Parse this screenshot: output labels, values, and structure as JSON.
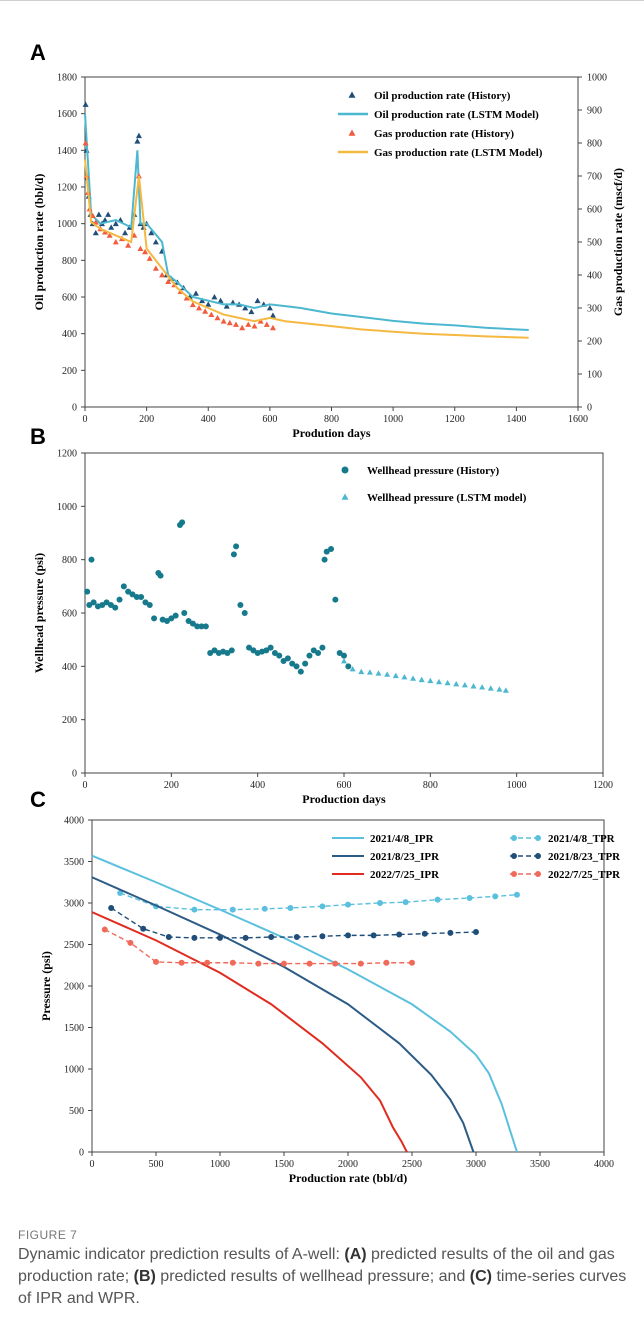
{
  "chart_data": [
    {
      "panel": "A",
      "type": "scatter+line",
      "xlabel": "Prodution days",
      "ylabel": "Oil production rate (bbl/d)",
      "y2label": "Gas production rate (mscf/d)",
      "xlim": [
        0,
        1600
      ],
      "ylim": [
        0,
        1800
      ],
      "y2lim": [
        0,
        1000
      ],
      "xticks": [
        "0",
        "200",
        "400",
        "600",
        "800",
        "1000",
        "1200",
        "1400",
        "1600"
      ],
      "yticks": [
        "0",
        "200",
        "400",
        "600",
        "800",
        "1000",
        "1200",
        "1400",
        "1600",
        "1800"
      ],
      "y2ticks": [
        "0",
        "100",
        "200",
        "300",
        "400",
        "500",
        "600",
        "700",
        "800",
        "900",
        "1000"
      ],
      "legend": "top-right",
      "series": [
        {
          "name": "Oil production rate (History)",
          "kind": "markers",
          "marker": "triangle",
          "color": "#1f4e79",
          "x": [
            2,
            5,
            8,
            12,
            18,
            25,
            35,
            45,
            55,
            65,
            75,
            85,
            100,
            115,
            130,
            145,
            160,
            170,
            175,
            180,
            190,
            200,
            215,
            230,
            250,
            265,
            280,
            300,
            320,
            340,
            360,
            380,
            400,
            420,
            440,
            460,
            480,
            500,
            520,
            540,
            560,
            580,
            600,
            610
          ],
          "y": [
            1650,
            1400,
            1250,
            1150,
            1050,
            1000,
            950,
            1050,
            1000,
            1020,
            1050,
            980,
            1000,
            1020,
            950,
            980,
            1050,
            1450,
            1480,
            1000,
            980,
            1000,
            950,
            900,
            850,
            720,
            700,
            680,
            650,
            600,
            620,
            580,
            560,
            600,
            580,
            550,
            570,
            560,
            540,
            520,
            580,
            560,
            540,
            500
          ]
        },
        {
          "name": "Oil production rate (LSTM Model)",
          "kind": "line",
          "color": "#4bb8d0",
          "x": [
            0,
            20,
            50,
            100,
            150,
            170,
            180,
            200,
            250,
            270,
            300,
            350,
            400,
            450,
            500,
            550,
            600,
            650,
            700,
            800,
            900,
            1000,
            1100,
            1200,
            1300,
            1440
          ],
          "y": [
            1600,
            1050,
            1000,
            1020,
            980,
            1400,
            1000,
            1000,
            900,
            720,
            680,
            600,
            580,
            560,
            560,
            540,
            560,
            550,
            540,
            510,
            490,
            470,
            455,
            445,
            432,
            420
          ]
        },
        {
          "name": "Gas production rate (History)",
          "kind": "markers",
          "marker": "triangle",
          "color": "#f25c3c",
          "x": [
            2,
            5,
            10,
            15,
            25,
            35,
            50,
            65,
            80,
            100,
            120,
            140,
            160,
            175,
            180,
            195,
            210,
            230,
            250,
            270,
            290,
            310,
            330,
            350,
            370,
            390,
            410,
            430,
            450,
            470,
            490,
            510,
            530,
            550,
            570,
            590,
            610
          ],
          "y": [
            800,
            700,
            650,
            600,
            580,
            560,
            540,
            530,
            520,
            500,
            510,
            490,
            520,
            700,
            480,
            470,
            450,
            420,
            400,
            380,
            370,
            350,
            330,
            310,
            300,
            290,
            280,
            270,
            260,
            255,
            250,
            240,
            250,
            245,
            260,
            250,
            240
          ]
        },
        {
          "name": "Gas production rate (LSTM Model)",
          "kind": "line",
          "color": "#f5b942",
          "x": [
            0,
            20,
            50,
            100,
            150,
            175,
            200,
            250,
            300,
            350,
            400,
            450,
            500,
            550,
            600,
            650,
            700,
            800,
            900,
            1000,
            1100,
            1200,
            1300,
            1440
          ],
          "y": [
            750,
            560,
            540,
            520,
            500,
            700,
            480,
            420,
            360,
            320,
            300,
            280,
            270,
            260,
            270,
            260,
            255,
            245,
            235,
            228,
            222,
            218,
            214,
            210
          ]
        }
      ]
    },
    {
      "panel": "B",
      "type": "scatter",
      "xlabel": "Production days",
      "ylabel": "Wellhead pressure (psi)",
      "xlim": [
        0,
        1200
      ],
      "ylim": [
        0,
        1200
      ],
      "xticks": [
        "0",
        "200",
        "400",
        "600",
        "800",
        "1000",
        "1200"
      ],
      "yticks": [
        "0",
        "200",
        "400",
        "600",
        "800",
        "1000",
        "1200"
      ],
      "legend": "top-right",
      "series": [
        {
          "name": "Wellhead pressure (History)",
          "kind": "markers",
          "marker": "circle",
          "color": "#177a8c",
          "x": [
            5,
            10,
            15,
            20,
            30,
            40,
            50,
            60,
            70,
            80,
            90,
            100,
            110,
            120,
            130,
            140,
            150,
            160,
            170,
            175,
            180,
            190,
            200,
            210,
            220,
            225,
            230,
            240,
            250,
            260,
            270,
            280,
            290,
            300,
            310,
            320,
            330,
            340,
            345,
            350,
            360,
            370,
            380,
            390,
            400,
            410,
            420,
            430,
            440,
            450,
            460,
            470,
            480,
            490,
            500,
            510,
            520,
            530,
            540,
            550,
            555,
            560,
            570,
            580,
            590,
            600,
            610
          ],
          "y": [
            680,
            630,
            800,
            640,
            625,
            630,
            640,
            630,
            620,
            650,
            700,
            680,
            670,
            660,
            660,
            640,
            630,
            580,
            750,
            740,
            575,
            570,
            580,
            590,
            930,
            940,
            600,
            570,
            560,
            550,
            550,
            550,
            450,
            460,
            450,
            455,
            450,
            460,
            820,
            850,
            630,
            600,
            470,
            460,
            450,
            455,
            460,
            470,
            450,
            440,
            420,
            430,
            410,
            400,
            380,
            410,
            440,
            460,
            450,
            470,
            800,
            830,
            840,
            650,
            450,
            440,
            400
          ]
        },
        {
          "name": "Wellhead pressure (LSTM model)",
          "kind": "markers",
          "marker": "triangle",
          "color": "#4bb8d0",
          "x": [
            600,
            620,
            640,
            660,
            680,
            700,
            720,
            740,
            760,
            780,
            800,
            820,
            840,
            860,
            880,
            900,
            920,
            940,
            960,
            975
          ],
          "y": [
            420,
            390,
            380,
            378,
            374,
            370,
            365,
            360,
            355,
            350,
            346,
            342,
            338,
            334,
            330,
            326,
            322,
            318,
            314,
            310
          ]
        }
      ]
    },
    {
      "panel": "C",
      "type": "line",
      "xlabel": "Production rate (bbl/d)",
      "ylabel": "Pressure (psi)",
      "xlim": [
        0,
        4000
      ],
      "ylim": [
        0,
        4000
      ],
      "xticks": [
        "0",
        "500",
        "1000",
        "1500",
        "2000",
        "2500",
        "3000",
        "3500",
        "4000"
      ],
      "yticks": [
        "0",
        "500",
        "1000",
        "1500",
        "2000",
        "2500",
        "3000",
        "3500",
        "4000"
      ],
      "legend": "top-right",
      "series": [
        {
          "name": "2021/4/8_IPR",
          "kind": "line",
          "color": "#5bc0de",
          "x": [
            0,
            500,
            1000,
            1500,
            2000,
            2500,
            2800,
            3000,
            3100,
            3200,
            3320
          ],
          "y": [
            3570,
            3250,
            2920,
            2580,
            2200,
            1780,
            1450,
            1170,
            950,
            580,
            0
          ]
        },
        {
          "name": "2021/4/8_TPR",
          "kind": "dashed",
          "color": "#5bc0de",
          "x": [
            220,
            500,
            800,
            1100,
            1350,
            1550,
            1800,
            2000,
            2250,
            2450,
            2700,
            2950,
            3150,
            3320
          ],
          "y": [
            3120,
            2960,
            2920,
            2920,
            2930,
            2940,
            2960,
            2980,
            3000,
            3010,
            3040,
            3060,
            3080,
            3100
          ]
        },
        {
          "name": "2021/8/23_IPR",
          "kind": "line",
          "color": "#2c5b85",
          "x": [
            0,
            500,
            1000,
            1500,
            2000,
            2400,
            2650,
            2800,
            2900,
            2980
          ],
          "y": [
            3310,
            2970,
            2620,
            2230,
            1780,
            1310,
            930,
            630,
            350,
            0
          ]
        },
        {
          "name": "2021/8/23_TPR",
          "kind": "dashed",
          "color": "#1f4e79",
          "x": [
            150,
            400,
            600,
            800,
            1000,
            1200,
            1400,
            1600,
            1800,
            2000,
            2200,
            2400,
            2600,
            2800,
            3000
          ],
          "y": [
            2940,
            2690,
            2590,
            2580,
            2580,
            2580,
            2590,
            2590,
            2600,
            2610,
            2610,
            2620,
            2630,
            2640,
            2650
          ]
        },
        {
          "name": "2022/7/25_IPR",
          "kind": "line",
          "color": "#e02b20",
          "x": [
            0,
            500,
            1000,
            1400,
            1800,
            2100,
            2250,
            2350,
            2420,
            2460
          ],
          "y": [
            2890,
            2550,
            2160,
            1780,
            1310,
            900,
            620,
            300,
            120,
            0
          ]
        },
        {
          "name": "2022/7/25_TPR",
          "kind": "dashed",
          "color": "#f06a5a",
          "x": [
            100,
            300,
            500,
            700,
            900,
            1100,
            1300,
            1500,
            1700,
            1900,
            2100,
            2300,
            2500
          ],
          "y": [
            2680,
            2520,
            2290,
            2280,
            2280,
            2280,
            2270,
            2270,
            2270,
            2270,
            2270,
            2280,
            2280
          ]
        }
      ]
    }
  ],
  "caption": {
    "label": "FIGURE 7",
    "text_intro": "Dynamic indicator prediction results of A-well: ",
    "a_tag": "(A)",
    "a_text": " predicted results of the oil and gas production rate; ",
    "b_tag": "(B)",
    "b_text": " predicted results of wellhead pressure; and ",
    "c_tag": "(C)",
    "c_text": " time-series curves of IPR and WPR."
  },
  "panel_letters": {
    "a": "A",
    "b": "B",
    "c": "C"
  }
}
